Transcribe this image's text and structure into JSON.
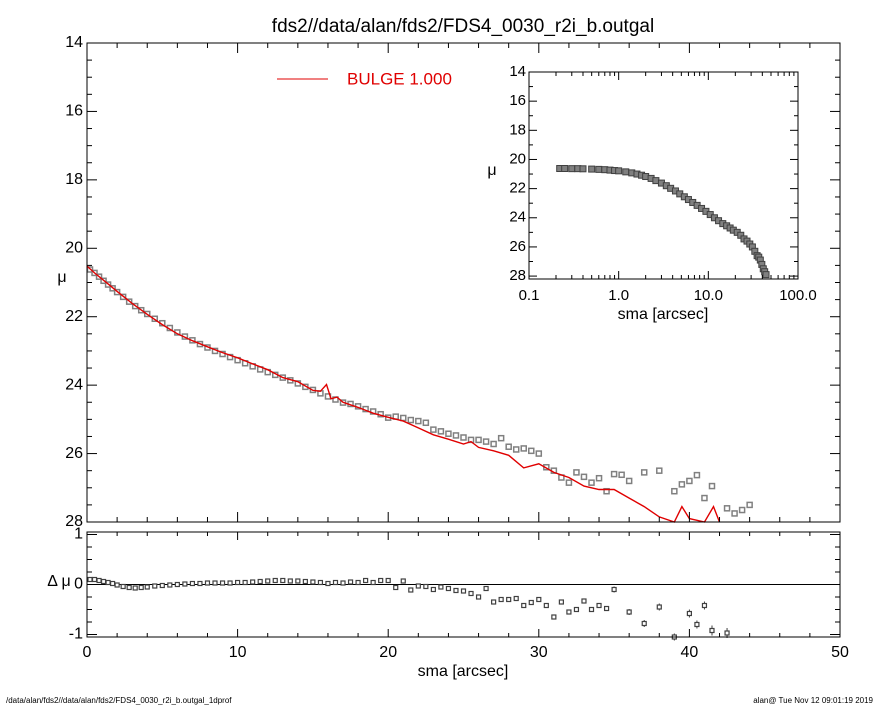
{
  "title": "fds2//data/alan/fds2/FDS4_0030_r2i_b.outgal",
  "footer": {
    "left": "/data/alan/fds2//data/alan/fds2/FDS4_0030_r2i_b.outgal_1dprof",
    "right": "alan@  Tue Nov 12 09:01:19 2019"
  },
  "colors": {
    "model": "#e00000",
    "data": "#808080",
    "data_edge": "#404040",
    "zero_line": "#000000"
  },
  "chart_data": [
    {
      "id": "main",
      "type": "scatter",
      "xlabel": "sma [arcsec]",
      "ylabel": "μ",
      "xlim": [
        0,
        50
      ],
      "ylim": [
        28,
        14
      ],
      "y_inverted": true,
      "xticks": [
        0,
        10,
        20,
        30,
        40,
        50
      ],
      "yticks": [
        14,
        16,
        18,
        20,
        22,
        24,
        26,
        28
      ],
      "legend": {
        "label": "BULGE  1.000",
        "placement": "top-center"
      },
      "series": [
        {
          "name": "data",
          "style": "open-squares",
          "x": [
            0.2,
            0.5,
            0.8,
            1.1,
            1.4,
            1.7,
            2.0,
            2.4,
            2.8,
            3.2,
            3.6,
            4.0,
            4.5,
            5.0,
            5.5,
            6.0,
            6.5,
            7.0,
            7.5,
            8.0,
            8.5,
            9.0,
            9.5,
            10.0,
            10.5,
            11.0,
            11.5,
            12.0,
            12.5,
            13.0,
            13.5,
            14.0,
            14.5,
            15.0,
            15.5,
            16.0,
            16.5,
            17.0,
            17.5,
            18.0,
            18.5,
            19.0,
            19.5,
            20.0,
            20.5,
            21.0,
            21.5,
            22.0,
            22.5,
            23.0,
            23.5,
            24.0,
            24.5,
            25.0,
            25.5,
            26.0,
            26.5,
            27.0,
            27.5,
            28.0,
            28.5,
            29.0,
            29.5,
            30.0,
            30.5,
            31.0,
            31.5,
            32.0,
            32.5,
            33.0,
            33.5,
            34.0,
            34.5,
            35.0,
            35.5,
            36.0,
            37.0,
            38.0,
            39.0,
            39.5,
            40.0,
            40.5,
            41.0,
            41.5,
            42.5,
            43.0,
            43.5,
            44.0
          ],
          "y": [
            20.62,
            20.72,
            20.83,
            20.95,
            21.06,
            21.17,
            21.28,
            21.42,
            21.56,
            21.69,
            21.81,
            21.92,
            22.06,
            22.19,
            22.33,
            22.46,
            22.58,
            22.69,
            22.8,
            22.9,
            23.0,
            23.09,
            23.18,
            23.27,
            23.36,
            23.45,
            23.54,
            23.62,
            23.7,
            23.78,
            23.86,
            23.95,
            24.05,
            24.14,
            24.24,
            24.33,
            24.42,
            24.51,
            24.55,
            24.62,
            24.7,
            24.77,
            24.85,
            24.95,
            24.92,
            24.96,
            25.02,
            25.05,
            25.1,
            25.3,
            25.35,
            25.42,
            25.47,
            25.53,
            25.6,
            25.6,
            25.65,
            25.72,
            25.55,
            25.8,
            25.88,
            25.85,
            25.92,
            26.0,
            26.4,
            26.5,
            26.7,
            26.85,
            26.55,
            26.68,
            26.85,
            26.72,
            27.1,
            26.6,
            26.62,
            26.8,
            26.55,
            26.5,
            27.1,
            26.9,
            26.8,
            26.63,
            27.3,
            26.95,
            27.6,
            27.75,
            27.65,
            27.5
          ]
        },
        {
          "name": "BULGE  1.000",
          "style": "line",
          "x": [
            0.0,
            0.5,
            1.0,
            1.5,
            2.0,
            3.0,
            4.0,
            5.0,
            6.0,
            7.0,
            8.0,
            9.0,
            10.0,
            11.0,
            12.0,
            13.0,
            14.0,
            15.0,
            15.5,
            15.9,
            16.2,
            16.6,
            17.0,
            18.0,
            19.0,
            20.0,
            21.0,
            22.0,
            23.0,
            24.0,
            25.0,
            25.5,
            26.0,
            27.0,
            28.0,
            29.0,
            30.0,
            31.0,
            32.0,
            33.0,
            34.0,
            35.0,
            36.0,
            37.0,
            38.0,
            39.0,
            39.5,
            40.0,
            41.0,
            41.6,
            42.0
          ],
          "y": [
            20.52,
            20.72,
            20.9,
            21.08,
            21.26,
            21.61,
            21.93,
            22.23,
            22.5,
            22.7,
            22.88,
            23.05,
            23.2,
            23.38,
            23.55,
            23.78,
            23.9,
            24.15,
            24.18,
            23.98,
            24.4,
            24.35,
            24.5,
            24.65,
            24.82,
            24.94,
            25.05,
            25.25,
            25.45,
            25.58,
            25.72,
            25.65,
            25.82,
            25.92,
            26.05,
            26.42,
            26.3,
            26.55,
            26.7,
            26.95,
            27.05,
            27.05,
            27.3,
            27.55,
            27.85,
            28.3,
            27.55,
            27.9,
            28.0,
            27.55,
            28.25
          ]
        }
      ]
    },
    {
      "id": "residual",
      "type": "scatter",
      "xlabel": "sma [arcsec]",
      "ylabel": "Δ μ",
      "xlim": [
        0,
        50
      ],
      "ylim": [
        -1.05,
        1.05
      ],
      "xticks": [
        0,
        10,
        20,
        30,
        40,
        50
      ],
      "yticks": [
        -1,
        0,
        1
      ],
      "zero_line": true,
      "series": [
        {
          "name": "residual",
          "style": "open-squares-with-errorbars",
          "x": [
            0.2,
            0.5,
            0.8,
            1.1,
            1.4,
            1.7,
            2.0,
            2.4,
            2.8,
            3.2,
            3.6,
            4.0,
            4.5,
            5.0,
            5.5,
            6.0,
            6.5,
            7.0,
            7.5,
            8.0,
            8.5,
            9.0,
            9.5,
            10.0,
            10.5,
            11.0,
            11.5,
            12.0,
            12.5,
            13.0,
            13.5,
            14.0,
            14.5,
            15.0,
            15.5,
            16.0,
            16.5,
            17.0,
            17.5,
            18.0,
            18.5,
            19.0,
            19.5,
            20.0,
            20.5,
            21.0,
            21.5,
            22.0,
            22.5,
            23.0,
            23.5,
            24.0,
            24.5,
            25.0,
            25.5,
            26.0,
            26.5,
            27.0,
            27.5,
            28.0,
            28.5,
            29.0,
            29.5,
            30.0,
            30.5,
            31.0,
            31.5,
            32.0,
            32.5,
            33.0,
            33.5,
            34.0,
            34.5,
            35.0,
            36.0,
            37.0,
            38.0,
            39.0,
            40.0,
            40.5,
            41.0,
            41.5,
            42.5
          ],
          "y": [
            0.1,
            0.1,
            0.08,
            0.06,
            0.04,
            0.02,
            -0.01,
            -0.04,
            -0.06,
            -0.07,
            -0.06,
            -0.05,
            -0.03,
            -0.02,
            -0.01,
            0.0,
            0.01,
            0.02,
            0.02,
            0.03,
            0.03,
            0.03,
            0.03,
            0.04,
            0.04,
            0.05,
            0.06,
            0.07,
            0.08,
            0.08,
            0.07,
            0.07,
            0.06,
            0.05,
            0.04,
            0.02,
            0.04,
            0.03,
            0.05,
            0.04,
            0.08,
            0.04,
            0.08,
            0.08,
            -0.06,
            0.07,
            -0.11,
            -0.03,
            -0.04,
            -0.1,
            -0.05,
            -0.08,
            -0.12,
            -0.13,
            -0.18,
            -0.25,
            -0.08,
            -0.35,
            -0.3,
            -0.3,
            -0.28,
            -0.42,
            -0.36,
            -0.3,
            -0.42,
            -0.65,
            -0.35,
            -0.55,
            -0.5,
            -0.33,
            -0.5,
            -0.42,
            -0.48,
            -0.1,
            -0.55,
            -0.78,
            -0.45,
            -1.05,
            -0.58,
            -0.8,
            -0.42,
            -0.92,
            -0.97
          ],
          "err": [
            0.01,
            0.01,
            0.01,
            0.01,
            0.01,
            0.01,
            0.01,
            0.01,
            0.01,
            0.01,
            0.01,
            0.01,
            0.01,
            0.01,
            0.01,
            0.01,
            0.01,
            0.01,
            0.01,
            0.01,
            0.01,
            0.01,
            0.01,
            0.01,
            0.01,
            0.01,
            0.01,
            0.01,
            0.01,
            0.01,
            0.01,
            0.01,
            0.01,
            0.01,
            0.01,
            0.01,
            0.01,
            0.01,
            0.01,
            0.01,
            0.01,
            0.01,
            0.01,
            0.02,
            0.02,
            0.02,
            0.02,
            0.02,
            0.02,
            0.02,
            0.02,
            0.02,
            0.02,
            0.02,
            0.02,
            0.03,
            0.03,
            0.03,
            0.03,
            0.03,
            0.03,
            0.03,
            0.03,
            0.04,
            0.04,
            0.04,
            0.04,
            0.04,
            0.04,
            0.05,
            0.05,
            0.05,
            0.05,
            0.06,
            0.06,
            0.07,
            0.07,
            0.07,
            0.08,
            0.08,
            0.08,
            0.1,
            0.1
          ]
        }
      ]
    },
    {
      "id": "inset",
      "type": "scatter",
      "x_scale": "log",
      "xlabel": "sma [arcsec]",
      "ylabel": "μ",
      "xlim": [
        0.1,
        100.0
      ],
      "ylim": [
        28.2,
        14
      ],
      "y_inverted": true,
      "xtick_labels": [
        "0.1",
        "1.0",
        "10.0",
        "100.0"
      ],
      "xticks": [
        0.1,
        1.0,
        10.0,
        100.0
      ],
      "yticks": [
        14,
        16,
        18,
        20,
        22,
        24,
        26,
        28
      ],
      "series": [
        {
          "name": "data",
          "style": "open-squares",
          "x": [
            0.22,
            0.25,
            0.3,
            0.35,
            0.4,
            0.5,
            0.6,
            0.7,
            0.8,
            0.9,
            1.0,
            1.2,
            1.4,
            1.6,
            1.8,
            2.0,
            2.3,
            2.6,
            3.0,
            3.4,
            3.8,
            4.3,
            4.8,
            5.4,
            6.0,
            6.7,
            7.5,
            8.4,
            9.4,
            10.5,
            11.7,
            13.0,
            14.5,
            16.0,
            17.5,
            19.0,
            21.0,
            23.0,
            25.0,
            27.0,
            29.0,
            31.0,
            33.0,
            35.0,
            36.5,
            38.0,
            39.5,
            41.0,
            42.5,
            44.0
          ],
          "y": [
            20.62,
            20.62,
            20.63,
            20.63,
            20.64,
            20.66,
            20.68,
            20.7,
            20.73,
            20.76,
            20.78,
            20.85,
            20.92,
            21.0,
            21.08,
            21.17,
            21.3,
            21.45,
            21.62,
            21.8,
            21.98,
            22.16,
            22.36,
            22.56,
            22.75,
            22.95,
            23.15,
            23.36,
            23.56,
            23.78,
            24.0,
            24.2,
            24.4,
            24.55,
            24.7,
            24.85,
            25.0,
            25.2,
            25.45,
            25.6,
            25.8,
            26.0,
            26.3,
            26.6,
            26.7,
            26.9,
            27.2,
            27.5,
            27.7,
            27.9
          ]
        }
      ]
    }
  ]
}
